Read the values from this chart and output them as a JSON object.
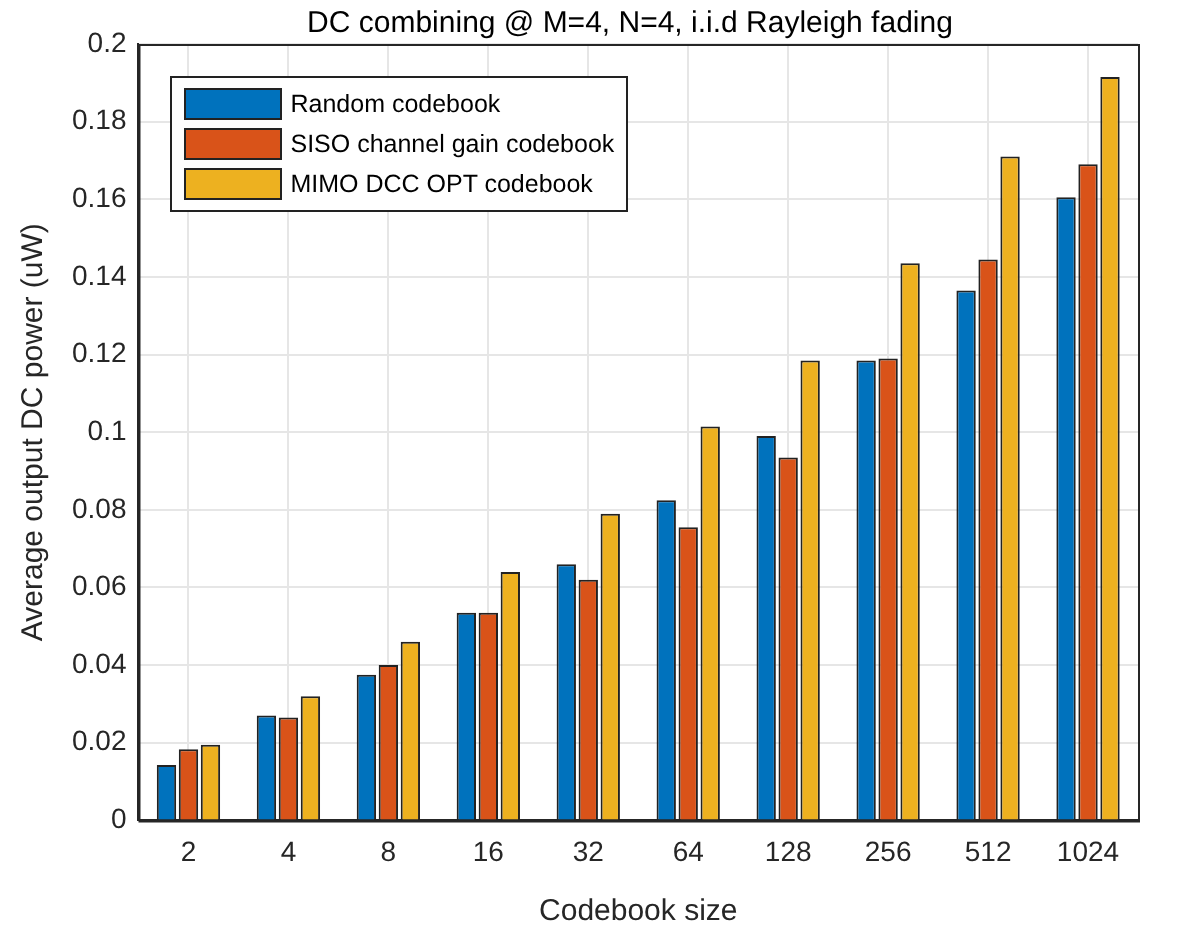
{
  "chart_data": {
    "type": "bar",
    "title": "DC combining @ M=4, N=4, i.i.d Rayleigh fading",
    "xlabel": "Codebook size",
    "ylabel": "Average output DC power (uW)",
    "categories": [
      "2",
      "4",
      "8",
      "16",
      "32",
      "64",
      "128",
      "256",
      "512",
      "1024"
    ],
    "series": [
      {
        "name": "Random codebook",
        "color": "#0072bd",
        "values": [
          0.0143,
          0.027,
          0.0375,
          0.0535,
          0.066,
          0.0825,
          0.099,
          0.1185,
          0.1365,
          0.1605
        ]
      },
      {
        "name": "SISO channel gain codebook",
        "color": "#d95319",
        "values": [
          0.0183,
          0.0265,
          0.04,
          0.0535,
          0.062,
          0.0755,
          0.0935,
          0.119,
          0.1445,
          0.169
        ]
      },
      {
        "name": "MIMO DCC OPT codebook",
        "color": "#edb120",
        "values": [
          0.0195,
          0.032,
          0.046,
          0.064,
          0.079,
          0.1015,
          0.1185,
          0.1435,
          0.171,
          0.1915
        ]
      }
    ],
    "ylim": [
      0,
      0.2
    ],
    "yticks": [
      0,
      0.02,
      0.04,
      0.06,
      0.08,
      0.1,
      0.12,
      0.14,
      0.16,
      0.18,
      0.2
    ],
    "grid": true,
    "legend": "top left"
  }
}
